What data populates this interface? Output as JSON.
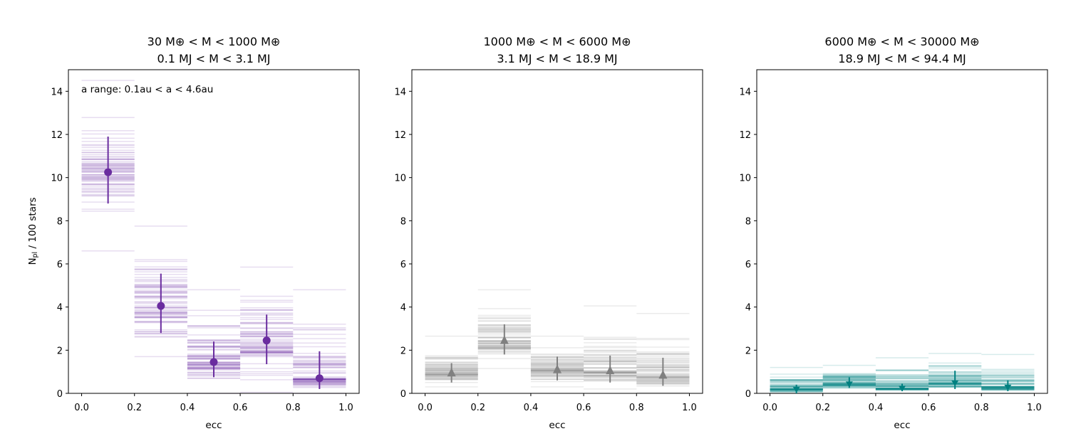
{
  "chart_data": {
    "type": "errorbar-histogram",
    "ylabel": "N_pl / 100 stars",
    "xlabel": "ecc",
    "xlim": [
      -0.05,
      1.05
    ],
    "ylim": [
      0,
      15
    ],
    "xticks": [
      "0.0",
      "0.2",
      "0.4",
      "0.6",
      "0.8",
      "1.0"
    ],
    "yticks": [
      "0",
      "2",
      "4",
      "6",
      "8",
      "10",
      "12",
      "14"
    ],
    "bins": [
      [
        0.0,
        0.2
      ],
      [
        0.2,
        0.4
      ],
      [
        0.4,
        0.6
      ],
      [
        0.6,
        0.8
      ],
      [
        0.8,
        1.0
      ]
    ],
    "panels": [
      {
        "title_line1": "30 M⊕ < M < 1000 M⊕",
        "title_line2": "0.1 MJ < M < 3.1 MJ",
        "annotation": "a range: 0.1au < a < 4.6au",
        "color": "#6a2d9f",
        "marker": "circle",
        "x": [
          0.1,
          0.3,
          0.5,
          0.7,
          0.9
        ],
        "y": [
          10.25,
          4.05,
          1.45,
          2.45,
          0.7
        ],
        "y_low": [
          8.8,
          2.8,
          0.75,
          1.35,
          0.2
        ],
        "y_high": [
          11.9,
          5.55,
          2.4,
          3.65,
          1.95
        ],
        "posterior_range": [
          [
            6.6,
            14.5
          ],
          [
            1.7,
            7.75
          ],
          [
            0.0,
            4.8
          ],
          [
            0.05,
            5.85
          ],
          [
            0.0,
            4.8
          ]
        ]
      },
      {
        "title_line1": "1000 M⊕ < M < 6000 M⊕",
        "title_line2": "3.1 MJ < M < 18.9 MJ",
        "color": "#808080",
        "marker": "triangle-up",
        "x": [
          0.1,
          0.3,
          0.5,
          0.7,
          0.9
        ],
        "y": [
          0.95,
          2.45,
          1.1,
          1.05,
          0.85
        ],
        "y_low": [
          0.5,
          1.8,
          0.6,
          0.5,
          0.35
        ],
        "y_high": [
          1.4,
          3.2,
          1.7,
          1.75,
          1.65
        ],
        "posterior_range": [
          [
            0.3,
            2.65
          ],
          [
            1.15,
            4.8
          ],
          [
            0.3,
            2.65
          ],
          [
            0.2,
            4.05
          ],
          [
            0.05,
            3.7
          ]
        ]
      },
      {
        "title_line1": "6000 M⊕ < M < 30000 M⊕",
        "title_line2": "18.9 MJ < M < 94.4 MJ",
        "color": "#008080",
        "marker": "arrow-down",
        "x": [
          0.1,
          0.3,
          0.5,
          0.7,
          0.9
        ],
        "y": [
          0.2,
          0.45,
          0.25,
          0.5,
          0.3
        ],
        "y_low": [
          0.0,
          0.25,
          0.1,
          0.2,
          0.1
        ],
        "y_high": [
          0.4,
          0.75,
          0.45,
          1.05,
          0.6
        ],
        "posterior_range": [
          [
            0.0,
            1.2
          ],
          [
            0.0,
            1.3
          ],
          [
            0.0,
            1.65
          ],
          [
            0.0,
            1.85
          ],
          [
            0.0,
            1.8
          ]
        ]
      }
    ]
  }
}
